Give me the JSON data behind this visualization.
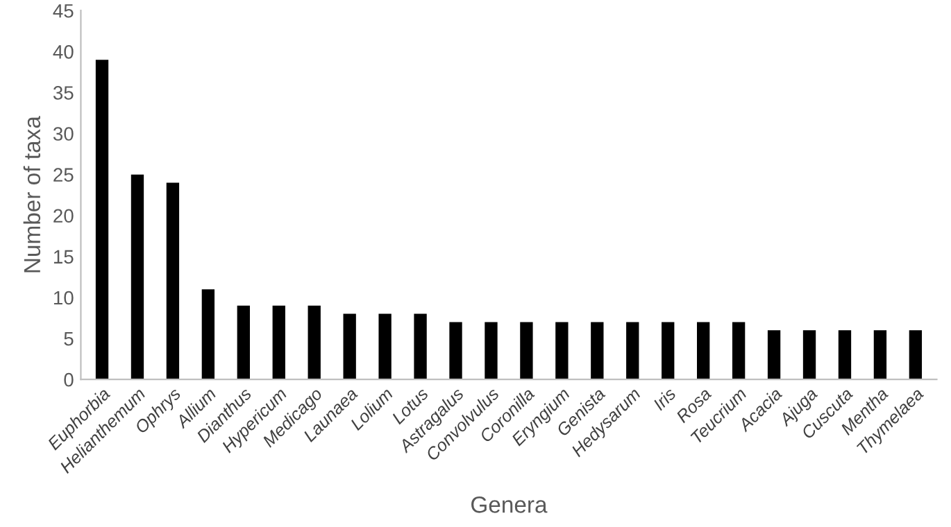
{
  "chart_data": {
    "type": "bar",
    "xlabel": "Genera",
    "ylabel": "Number of taxa",
    "categories": [
      "Euphorbia",
      "Helianthemum",
      "Ophrys",
      "Allium",
      "Dianthus",
      "Hypericum",
      "Medicago",
      "Launaea",
      "Lolium",
      "Lotus",
      "Astragalus",
      "Convolvulus",
      "Coronilla",
      "Eryngium",
      "Genista",
      "Hedysarum",
      "Iris",
      "Rosa",
      "Teucrium",
      "Acacia",
      "Ajuga",
      "Cuscuta",
      "Mentha",
      "Thymelaea"
    ],
    "values": [
      39,
      25,
      24,
      11,
      9,
      9,
      9,
      8,
      8,
      8,
      7,
      7,
      7,
      7,
      7,
      7,
      7,
      7,
      7,
      6,
      6,
      6,
      6,
      6
    ],
    "color": "#000000",
    "ylim": [
      0,
      45
    ],
    "yticks": [
      0,
      5,
      10,
      15,
      20,
      25,
      30,
      35,
      40,
      45
    ],
    "grid": false
  }
}
